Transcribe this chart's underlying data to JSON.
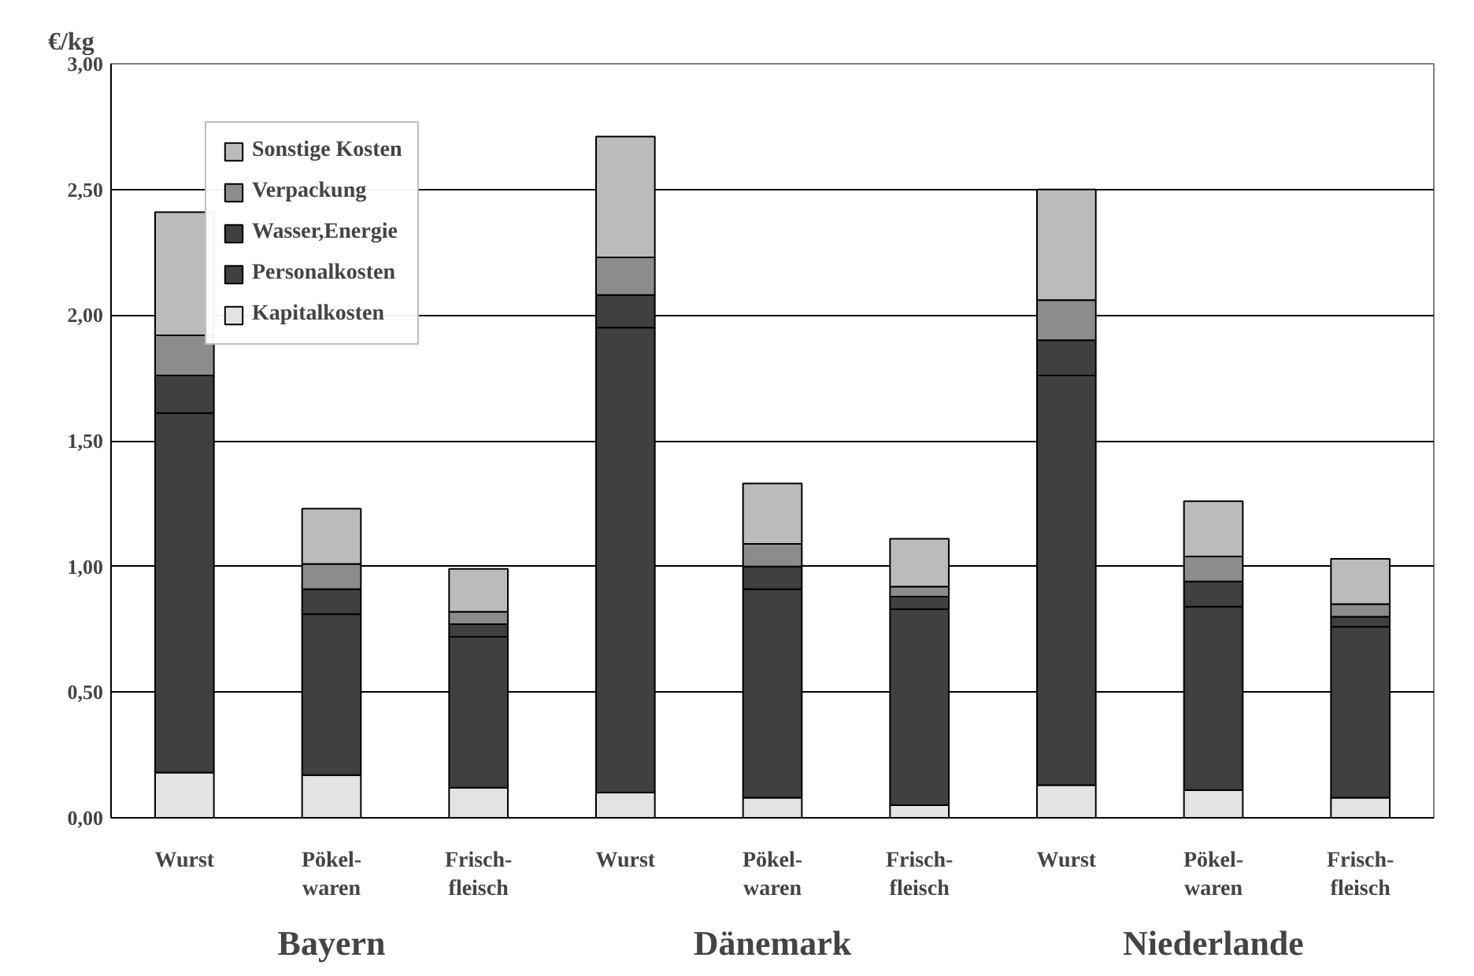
{
  "chart_data": {
    "type": "bar",
    "stacked": true,
    "ylabel": "€/kg",
    "categories": [
      "Wurst",
      "Pökel-\nwaren",
      "Frisch-\nfleisch",
      "Wurst",
      "Pökel-\nwaren",
      "Frisch-\nfleisch",
      "Wurst",
      "Pökel-\nwaren",
      "Frisch-\nfleisch"
    ],
    "annotations": [
      "Bayern",
      "Dänemark",
      "Niederlande"
    ],
    "series": [
      {
        "name": "Kapitalkosten",
        "color": "#e3e3e3",
        "values": [
          0.18,
          0.17,
          0.12,
          0.1,
          0.08,
          0.05,
          0.13,
          0.11,
          0.08
        ]
      },
      {
        "name": "Personalkosten",
        "color": "#404040",
        "values": [
          1.43,
          0.64,
          0.6,
          1.85,
          0.83,
          0.78,
          1.63,
          0.73,
          0.68
        ]
      },
      {
        "name": "Wasser,Energie",
        "color": "#404040",
        "values": [
          0.15,
          0.1,
          0.05,
          0.13,
          0.09,
          0.05,
          0.14,
          0.1,
          0.04
        ]
      },
      {
        "name": "Verpackung",
        "color": "#8c8c8c",
        "values": [
          0.16,
          0.1,
          0.05,
          0.15,
          0.09,
          0.04,
          0.16,
          0.1,
          0.05
        ]
      },
      {
        "name": "Sonstige Kosten",
        "color": "#bbbbbb",
        "values": [
          0.49,
          0.22,
          0.17,
          0.48,
          0.24,
          0.19,
          0.44,
          0.22,
          0.18
        ]
      }
    ],
    "ylim": [
      0,
      3
    ],
    "yticks": [
      {
        "value": 0,
        "label": "0,00"
      },
      {
        "value": 0.5,
        "label": "0,50"
      },
      {
        "value": 1,
        "label": "1,00"
      },
      {
        "value": 1.5,
        "label": "1,50"
      },
      {
        "value": 2,
        "label": "2,00"
      },
      {
        "value": 2.5,
        "label": "2,50"
      },
      {
        "value": 3,
        "label": "3,00"
      }
    ],
    "grid": "y",
    "legend": "top left"
  }
}
